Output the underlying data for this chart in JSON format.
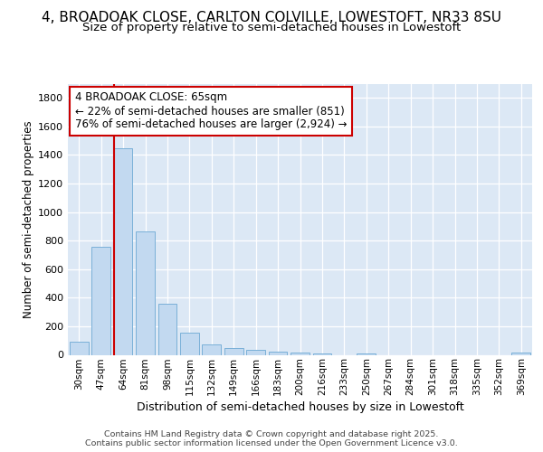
{
  "title1": "4, BROADOAK CLOSE, CARLTON COLVILLE, LOWESTOFT, NR33 8SU",
  "title2": "Size of property relative to semi-detached houses in Lowestoft",
  "xlabel": "Distribution of semi-detached houses by size in Lowestoft",
  "ylabel": "Number of semi-detached properties",
  "categories": [
    "30sqm",
    "47sqm",
    "64sqm",
    "81sqm",
    "98sqm",
    "115sqm",
    "132sqm",
    "149sqm",
    "166sqm",
    "183sqm",
    "200sqm",
    "216sqm",
    "233sqm",
    "250sqm",
    "267sqm",
    "284sqm",
    "301sqm",
    "318sqm",
    "335sqm",
    "352sqm",
    "369sqm"
  ],
  "values": [
    90,
    760,
    1450,
    865,
    355,
    155,
    75,
    50,
    35,
    25,
    15,
    10,
    0,
    10,
    0,
    0,
    0,
    0,
    0,
    0,
    15
  ],
  "bar_color": "#c2d9f0",
  "bar_edge_color": "#7ab0d8",
  "vline_index": 2,
  "vline_color": "#cc0000",
  "annotation_text": "4 BROADOAK CLOSE: 65sqm\n← 22% of semi-detached houses are smaller (851)\n76% of semi-detached houses are larger (2,924) →",
  "ylim": [
    0,
    1900
  ],
  "yticks": [
    0,
    200,
    400,
    600,
    800,
    1000,
    1200,
    1400,
    1600,
    1800
  ],
  "fig_bg_color": "#ffffff",
  "plot_bg_color": "#dce8f5",
  "grid_color": "#ffffff",
  "footer_text": "Contains HM Land Registry data © Crown copyright and database right 2025.\nContains public sector information licensed under the Open Government Licence v3.0.",
  "title1_fontsize": 11,
  "title2_fontsize": 9.5,
  "xlabel_fontsize": 9,
  "ylabel_fontsize": 8.5,
  "annotation_fontsize": 8.5,
  "footer_fontsize": 6.8,
  "tick_fontsize": 8,
  "xtick_fontsize": 7.5
}
